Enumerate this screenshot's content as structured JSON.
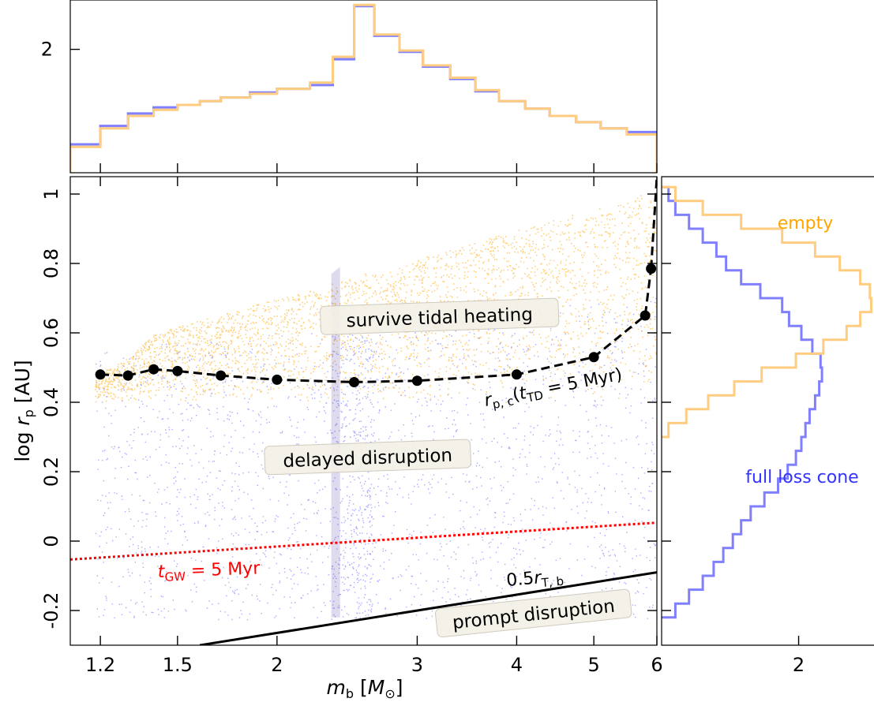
{
  "chart_data": {
    "type": "scatter",
    "xlabel": "m_b [M_⊙]",
    "ylabel": "log r_p [AU]",
    "xscale": "log",
    "xlim": [
      1.1,
      6.0
    ],
    "ylim": [
      -0.3,
      1.05
    ],
    "x_ticks": [
      {
        "v": 1.2,
        "label": "1.2"
      },
      {
        "v": 1.5,
        "label": "1.5"
      },
      {
        "v": 2,
        "label": "2"
      },
      {
        "v": 3,
        "label": "3"
      },
      {
        "v": 4,
        "label": "4"
      },
      {
        "v": 5,
        "label": "5"
      },
      {
        "v": 6,
        "label": "6"
      }
    ],
    "y_ticks": [
      {
        "v": -0.2,
        "label": "-0.2"
      },
      {
        "v": 0,
        "label": "0"
      },
      {
        "v": 0.2,
        "label": "0.2"
      },
      {
        "v": 0.4,
        "label": "0.4"
      },
      {
        "v": 0.6,
        "label": "0.6"
      },
      {
        "v": 0.8,
        "label": "0.8"
      },
      {
        "v": 1,
        "label": "1"
      }
    ],
    "series": [
      {
        "name": "full loss cone",
        "color": "#3333ff",
        "kind": "scatter-cloud"
      },
      {
        "name": "empty",
        "color": "#ffa500",
        "kind": "scatter-cloud"
      }
    ],
    "critical_curve": {
      "label": "r_p,c(t_TD = 5 Myr)",
      "color": "#000000",
      "points": [
        [
          1.2,
          0.48
        ],
        [
          1.3,
          0.477
        ],
        [
          1.4,
          0.495
        ],
        [
          1.5,
          0.49
        ],
        [
          1.7,
          0.477
        ],
        [
          2.0,
          0.465
        ],
        [
          2.5,
          0.458
        ],
        [
          3.0,
          0.462
        ],
        [
          4.0,
          0.48
        ],
        [
          5.0,
          0.53
        ],
        [
          5.8,
          0.65
        ],
        [
          5.9,
          0.785
        ]
      ],
      "extension": [
        [
          5.9,
          0.785
        ],
        [
          6.0,
          1.05
        ]
      ]
    },
    "gw_line": {
      "label": "t_GW = 5 Myr",
      "color": "#ff0000",
      "points": [
        [
          1.1,
          -0.053
        ],
        [
          6.0,
          0.053
        ]
      ]
    },
    "tidal_line": {
      "label": "0.5 r_T,b",
      "color": "#000000",
      "points": [
        [
          1.6,
          -0.3
        ],
        [
          6.0,
          -0.09
        ]
      ]
    },
    "region_labels": [
      {
        "text": "survive tidal heating",
        "x": 3.2,
        "y": 0.645
      },
      {
        "text": "delayed disruption",
        "x": 2.6,
        "y": 0.24
      },
      {
        "text": "prompt disruption",
        "x": 4.2,
        "y": -0.21
      }
    ],
    "hist_top": {
      "type": "step",
      "ytick": {
        "v": 2,
        "label": "2"
      },
      "ylim": [
        1.0,
        2.4
      ],
      "edges": [
        1.1,
        1.2,
        1.3,
        1.4,
        1.5,
        1.6,
        1.7,
        1.85,
        2.0,
        2.2,
        2.35,
        2.5,
        2.65,
        2.85,
        3.05,
        3.3,
        3.55,
        3.8,
        4.1,
        4.4,
        4.75,
        5.1,
        5.5,
        6.0
      ],
      "series": [
        {
          "name": "full loss cone",
          "color": "#7f7fff",
          "values": [
            1.23,
            1.38,
            1.48,
            1.53,
            1.55,
            1.58,
            1.61,
            1.65,
            1.68,
            1.71,
            1.92,
            2.35,
            2.11,
            1.98,
            1.86,
            1.76,
            1.66,
            1.58,
            1.52,
            1.46,
            1.41,
            1.36,
            1.33
          ]
        },
        {
          "name": "empty",
          "color": "#ffcc80",
          "values": [
            1.21,
            1.36,
            1.46,
            1.51,
            1.55,
            1.58,
            1.61,
            1.64,
            1.68,
            1.73,
            1.94,
            2.36,
            2.12,
            1.99,
            1.87,
            1.77,
            1.67,
            1.58,
            1.52,
            1.46,
            1.41,
            1.36,
            1.31
          ]
        }
      ]
    },
    "hist_right": {
      "type": "step",
      "xtick": {
        "v": 2,
        "label": "2"
      },
      "xlim": [
        1.0,
        2.55
      ],
      "edges": [
        -0.22,
        -0.18,
        -0.14,
        -0.1,
        -0.06,
        -0.02,
        0.02,
        0.06,
        0.1,
        0.14,
        0.18,
        0.22,
        0.26,
        0.3,
        0.34,
        0.38,
        0.42,
        0.46,
        0.5,
        0.54,
        0.58,
        0.62,
        0.66,
        0.7,
        0.74,
        0.78,
        0.82,
        0.86,
        0.9,
        0.94,
        0.98,
        1.02
      ],
      "series": [
        {
          "name": "full loss cone",
          "color": "#7f7fff",
          "values": [
            1.1,
            1.2,
            1.3,
            1.38,
            1.45,
            1.52,
            1.58,
            1.65,
            1.75,
            1.85,
            1.92,
            1.98,
            2.02,
            2.05,
            2.08,
            2.12,
            2.15,
            2.17,
            2.16,
            2.1,
            2.02,
            1.93,
            1.88,
            1.72,
            1.58,
            1.47,
            1.4,
            1.3,
            1.2,
            1.1,
            1.05
          ]
        },
        {
          "name": "empty",
          "color": "#ffcc80",
          "values": [
            0,
            0,
            0,
            0,
            0,
            0,
            0,
            0,
            0,
            0,
            0,
            0,
            0,
            1.05,
            1.18,
            1.34,
            1.53,
            1.73,
            1.98,
            2.18,
            2.35,
            2.45,
            2.53,
            2.52,
            2.45,
            2.3,
            2.12,
            1.88,
            1.58,
            1.3,
            1.1
          ]
        }
      ]
    }
  }
}
